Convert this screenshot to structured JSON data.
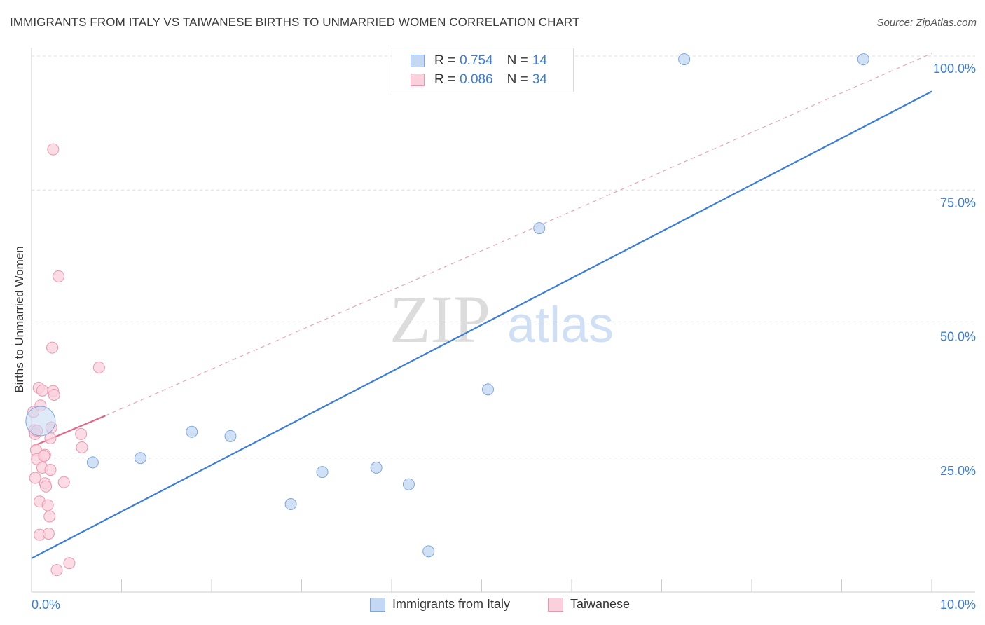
{
  "header": {
    "title": "IMMIGRANTS FROM ITALY VS TAIWANESE BIRTHS TO UNMARRIED WOMEN CORRELATION CHART",
    "source": "Source: ZipAtlas.com"
  },
  "watermark": {
    "zip": "ZIP",
    "atlas": "atlas"
  },
  "legend": {
    "rows": [
      {
        "r_label": "R =",
        "r_value": "0.754",
        "n_label": "N =",
        "n_value": "14",
        "color": "#a9c6f0",
        "border": "#7ea6e0"
      },
      {
        "r_label": "R =",
        "r_value": "0.086",
        "n_label": "N =",
        "n_value": "34",
        "color": "#f7c1d1",
        "border": "#ee95b0"
      }
    ]
  },
  "bottom_legend": [
    {
      "label": "Immigrants from Italy",
      "color": "#c4d8f3",
      "border": "#7ea6e0"
    },
    {
      "label": "Taiwanese",
      "color": "#fad0dc",
      "border": "#ee95b0"
    }
  ],
  "chart_data": {
    "type": "scatter",
    "title": "IMMIGRANTS FROM ITALY VS TAIWANESE BIRTHS TO UNMARRIED WOMEN CORRELATION CHART",
    "xlabel": "",
    "ylabel": "Births to Unmarried Women",
    "xlim": [
      0,
      10
    ],
    "ylim": [
      0,
      100
    ],
    "x_tick_labels": [
      "0.0%",
      "10.0%"
    ],
    "y_ticks": [
      25,
      50,
      75,
      100
    ],
    "y_tick_labels": [
      "25.0%",
      "50.0%",
      "75.0%",
      "100.0%"
    ],
    "grid": true,
    "legend_position": "top-center",
    "series": [
      {
        "name": "Immigrants from Italy",
        "color": "#3b7dd8",
        "fill": "#c4d8f3",
        "points": [
          {
            "x": 0.1,
            "y": 31.9,
            "big": true
          },
          {
            "x": 0.68,
            "y": 24.2
          },
          {
            "x": 1.21,
            "y": 25.0
          },
          {
            "x": 1.78,
            "y": 29.9
          },
          {
            "x": 2.21,
            "y": 29.1
          },
          {
            "x": 2.88,
            "y": 16.4
          },
          {
            "x": 3.23,
            "y": 22.4
          },
          {
            "x": 3.83,
            "y": 23.2
          },
          {
            "x": 4.19,
            "y": 20.1
          },
          {
            "x": 4.41,
            "y": 7.6
          },
          {
            "x": 5.07,
            "y": 37.8
          },
          {
            "x": 5.64,
            "y": 67.9
          },
          {
            "x": 7.25,
            "y": 99.4
          },
          {
            "x": 9.24,
            "y": 99.4
          }
        ],
        "trend": {
          "x": [
            0,
            10
          ],
          "y": [
            6.3,
            93.4
          ],
          "style": "solid"
        }
      },
      {
        "name": "Taiwanese",
        "color": "#e0668a",
        "fill": "#fad0dc",
        "points": [
          {
            "x": 0.02,
            "y": 33.6
          },
          {
            "x": 0.03,
            "y": 30.2
          },
          {
            "x": 0.04,
            "y": 29.5
          },
          {
            "x": 0.05,
            "y": 26.5
          },
          {
            "x": 0.06,
            "y": 24.8
          },
          {
            "x": 0.04,
            "y": 21.3
          },
          {
            "x": 0.08,
            "y": 38.1
          },
          {
            "x": 0.1,
            "y": 34.8
          },
          {
            "x": 0.12,
            "y": 37.6
          },
          {
            "x": 0.15,
            "y": 25.6
          },
          {
            "x": 0.12,
            "y": 23.2
          },
          {
            "x": 0.15,
            "y": 20.3
          },
          {
            "x": 0.16,
            "y": 19.7
          },
          {
            "x": 0.09,
            "y": 16.9
          },
          {
            "x": 0.18,
            "y": 16.2
          },
          {
            "x": 0.2,
            "y": 14.1
          },
          {
            "x": 0.09,
            "y": 10.7
          },
          {
            "x": 0.19,
            "y": 10.9
          },
          {
            "x": 0.22,
            "y": 30.7
          },
          {
            "x": 0.21,
            "y": 28.7
          },
          {
            "x": 0.21,
            "y": 22.8
          },
          {
            "x": 0.23,
            "y": 45.6
          },
          {
            "x": 0.24,
            "y": 82.6
          },
          {
            "x": 0.24,
            "y": 37.5
          },
          {
            "x": 0.25,
            "y": 36.8
          },
          {
            "x": 0.3,
            "y": 58.9
          },
          {
            "x": 0.36,
            "y": 20.5
          },
          {
            "x": 0.42,
            "y": 5.4
          },
          {
            "x": 0.28,
            "y": 4.1
          },
          {
            "x": 0.55,
            "y": 29.5
          },
          {
            "x": 0.56,
            "y": 27.0
          },
          {
            "x": 0.75,
            "y": 41.9
          },
          {
            "x": 0.06,
            "y": 30.1
          },
          {
            "x": 0.14,
            "y": 25.4
          }
        ],
        "trend": {
          "x": [
            0,
            0.82
          ],
          "y": [
            27.1,
            32.9
          ],
          "style": "solid"
        },
        "trend_extended": {
          "x": [
            0.82,
            10
          ],
          "y": [
            32.9,
            100.5
          ],
          "style": "dashed"
        }
      }
    ]
  }
}
